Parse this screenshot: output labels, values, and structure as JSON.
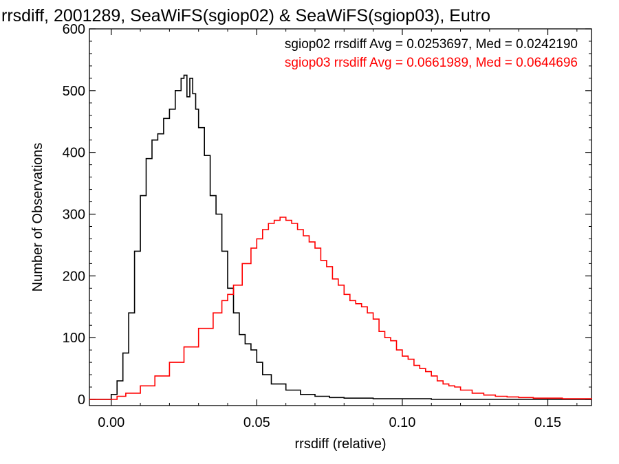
{
  "chart_data": {
    "type": "line",
    "title": "rrsdiff, 2001289, SeaWiFS(sgiop02) & SeaWiFS(sgiop03), Eutro",
    "xlabel": "rrsdiff (relative)",
    "ylabel": "Number of Observations",
    "xlim": [
      -0.0075,
      0.165
    ],
    "ylim": [
      -10,
      600
    ],
    "x_ticks": [
      0.0,
      0.05,
      0.1,
      0.15
    ],
    "x_tick_labels": [
      "0.00",
      "0.05",
      "0.10",
      "0.15"
    ],
    "y_ticks": [
      0,
      100,
      200,
      300,
      400,
      500,
      600
    ],
    "y_tick_labels": [
      "0",
      "100",
      "200",
      "300",
      "400",
      "500",
      "600"
    ],
    "step": "histogram",
    "legend_position": "top-right",
    "series": [
      {
        "name": "sgiop02",
        "color": "#000000",
        "legend_label": "sgiop02 rrsdiff Avg = 0.0253697, Med = 0.0242190",
        "x": [
          -0.0075,
          -0.004,
          0.0,
          0.002,
          0.004,
          0.006,
          0.008,
          0.01,
          0.012,
          0.014,
          0.016,
          0.018,
          0.02,
          0.022,
          0.024,
          0.025,
          0.026,
          0.027,
          0.028,
          0.029,
          0.03,
          0.032,
          0.034,
          0.036,
          0.038,
          0.04,
          0.042,
          0.044,
          0.046,
          0.048,
          0.05,
          0.052,
          0.055,
          0.06,
          0.065,
          0.07,
          0.075,
          0.08,
          0.085,
          0.09,
          0.1,
          0.11,
          0.12,
          0.13,
          0.165
        ],
        "y": [
          0,
          0,
          8,
          30,
          75,
          140,
          240,
          330,
          390,
          420,
          430,
          455,
          470,
          500,
          520,
          525,
          490,
          520,
          495,
          470,
          440,
          395,
          330,
          300,
          240,
          180,
          140,
          105,
          90,
          80,
          60,
          40,
          25,
          15,
          8,
          5,
          3,
          2,
          2,
          1,
          1,
          0,
          0,
          0,
          0
        ]
      },
      {
        "name": "sgiop03",
        "color": "#ff0000",
        "legend_label": "sgiop03 rrsdiff Avg = 0.0661989, Med = 0.0644696",
        "x": [
          -0.0075,
          0.0,
          0.002,
          0.005,
          0.01,
          0.015,
          0.02,
          0.025,
          0.03,
          0.035,
          0.038,
          0.04,
          0.042,
          0.045,
          0.048,
          0.05,
          0.052,
          0.054,
          0.056,
          0.058,
          0.06,
          0.062,
          0.064,
          0.066,
          0.068,
          0.07,
          0.072,
          0.074,
          0.076,
          0.078,
          0.08,
          0.082,
          0.084,
          0.086,
          0.088,
          0.09,
          0.092,
          0.094,
          0.096,
          0.098,
          0.1,
          0.102,
          0.104,
          0.106,
          0.108,
          0.11,
          0.112,
          0.114,
          0.116,
          0.118,
          0.12,
          0.124,
          0.128,
          0.132,
          0.136,
          0.14,
          0.145,
          0.15,
          0.155,
          0.165
        ],
        "y": [
          0,
          0,
          5,
          10,
          22,
          38,
          60,
          85,
          115,
          140,
          160,
          170,
          185,
          220,
          245,
          260,
          275,
          285,
          290,
          295,
          290,
          285,
          275,
          265,
          255,
          245,
          225,
          215,
          195,
          185,
          170,
          160,
          155,
          150,
          140,
          130,
          110,
          100,
          95,
          80,
          70,
          65,
          55,
          50,
          45,
          38,
          30,
          25,
          22,
          20,
          15,
          10,
          7,
          5,
          4,
          3,
          2,
          2,
          1,
          0
        ]
      }
    ]
  }
}
